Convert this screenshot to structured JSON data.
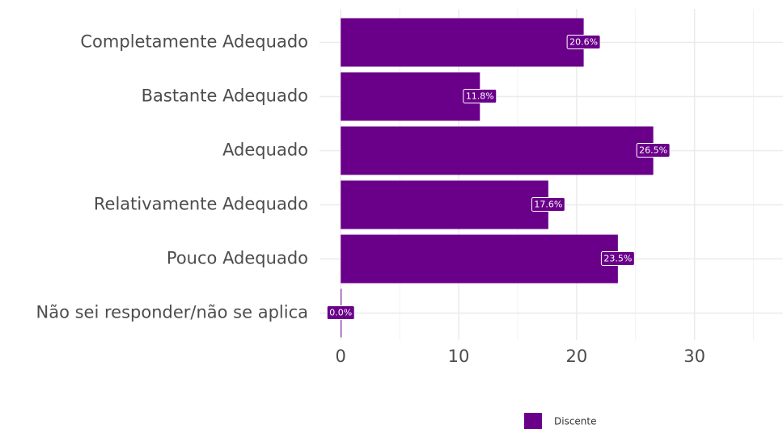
{
  "chart_data": {
    "type": "barh",
    "categories": [
      "Completamente Adequado",
      "Bastante Adequado",
      "Adequado",
      "Relativamente Adequado",
      "Pouco Adequado",
      "Não sei responder/não se aplica"
    ],
    "series": [
      {
        "name": "Discente",
        "color": "#6a008a",
        "values": [
          20.6,
          11.8,
          26.5,
          17.6,
          23.5,
          0.0
        ],
        "value_labels": [
          "20.6%",
          "11.8%",
          "26.5%",
          "17.6%",
          "23.5%",
          "0.0%"
        ]
      }
    ],
    "xlim": [
      -1.8,
      37.5
    ],
    "xticks": [
      0,
      10,
      20,
      30
    ],
    "grid": true,
    "legend": "bottom"
  }
}
